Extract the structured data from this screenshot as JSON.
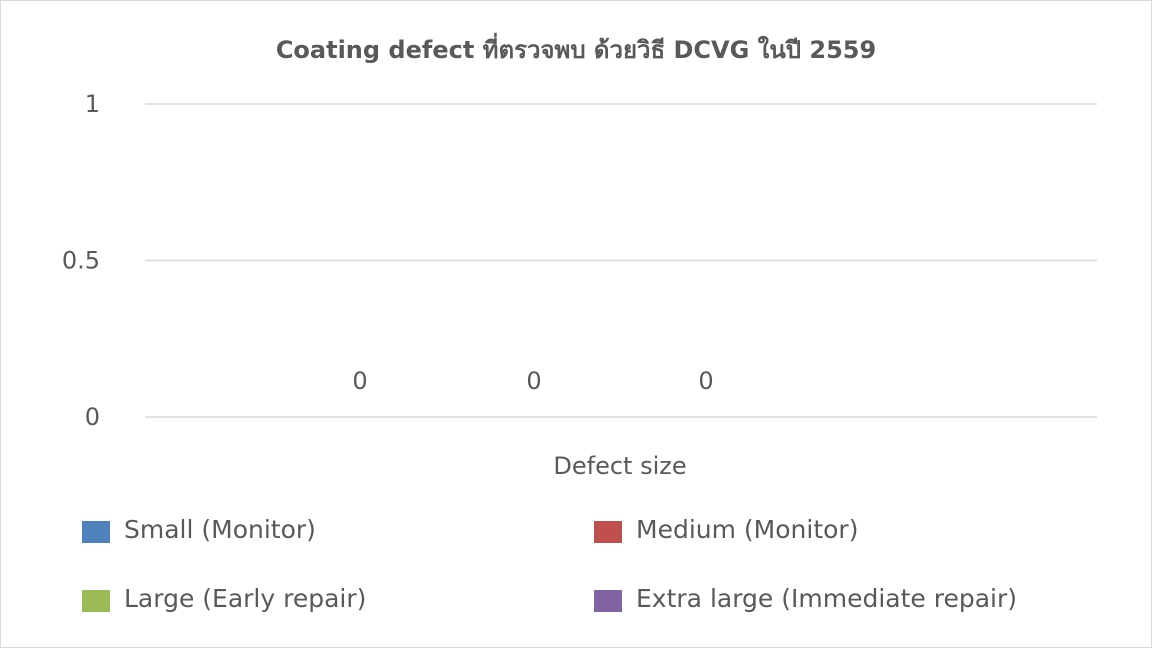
{
  "chart_data": {
    "type": "bar",
    "title": "Coating defect ที่ตรวจพบ ด้วยวิธี DCVG ในปี 2559",
    "xlabel": "Defect size",
    "ylabel": "",
    "ylim": [
      0,
      1
    ],
    "yticks": [
      "0",
      "0.5",
      "1"
    ],
    "grid": true,
    "legend_position": "bottom",
    "categories": [
      ""
    ],
    "series": [
      {
        "name": "Small (Monitor)",
        "color": "#4f81bd",
        "values": [
          0
        ],
        "label": "0"
      },
      {
        "name": "Medium (Monitor)",
        "color": "#c0504d",
        "values": [
          0
        ],
        "label": "0"
      },
      {
        "name": "Large (Early repair)",
        "color": "#9bbb59",
        "values": [
          0
        ],
        "label": "0"
      },
      {
        "name": "Extra large (Immediate repair)",
        "color": "#8064a2",
        "values": [
          0
        ],
        "label": null
      }
    ]
  }
}
